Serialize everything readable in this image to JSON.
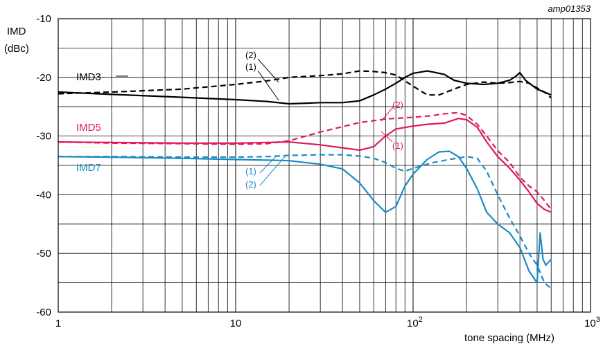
{
  "chart_data": {
    "type": "line",
    "code": "amp01353",
    "ylabel_line1": "IMD",
    "ylabel_line2": "(dBc)",
    "xlabel": "tone spacing (MHz)",
    "xscale": "log",
    "xlim": [
      1,
      1000
    ],
    "ylim": [
      -60,
      -10
    ],
    "grid": true,
    "x_ticks": [
      {
        "base": "1",
        "exp": ""
      },
      {
        "base": "10",
        "exp": ""
      },
      {
        "base": "10",
        "exp": "2"
      },
      {
        "base": "10",
        "exp": "3"
      }
    ],
    "y_ticks": [
      "-60",
      "-50",
      "-40",
      "-30",
      "-20",
      "-10"
    ],
    "colors": {
      "IMD3": "#000000",
      "IMD5": "#e2185b",
      "IMD7": "#1a8ac6"
    },
    "series_labels": [
      "IMD3",
      "IMD5",
      "IMD7"
    ],
    "markers": {
      "one": "(1)",
      "two": "(2)"
    },
    "series": [
      {
        "group": "IMD3",
        "curve": "(1)",
        "style": "solid",
        "x": [
          1,
          2,
          5,
          10,
          15,
          20,
          25,
          30,
          40,
          50,
          60,
          70,
          80,
          90,
          100,
          110,
          120,
          130,
          150,
          170,
          200,
          250,
          300,
          350,
          380,
          400,
          430,
          500,
          600
        ],
        "y": [
          -22.5,
          -22.9,
          -23.4,
          -23.8,
          -24.1,
          -24.5,
          -24.4,
          -24.3,
          -24.3,
          -24.0,
          -23.0,
          -22.0,
          -21.0,
          -20.0,
          -19.3,
          -19.1,
          -18.9,
          -19.1,
          -19.5,
          -20.5,
          -21.0,
          -21.2,
          -21.0,
          -20.5,
          -19.8,
          -19.2,
          -20.5,
          -22.0,
          -23.0
        ]
      },
      {
        "group": "IMD3",
        "curve": "(2)",
        "style": "dashed",
        "x": [
          1,
          2,
          5,
          10,
          15,
          20,
          30,
          40,
          50,
          60,
          70,
          80,
          100,
          120,
          140,
          170,
          200,
          250,
          300,
          350,
          400,
          450,
          500,
          550,
          600
        ],
        "y": [
          -22.8,
          -22.5,
          -22.0,
          -21.2,
          -20.6,
          -20.0,
          -19.7,
          -19.4,
          -18.9,
          -19.0,
          -19.2,
          -19.6,
          -21.5,
          -23.0,
          -23.0,
          -22.0,
          -21.2,
          -20.8,
          -21.0,
          -20.9,
          -20.7,
          -21.0,
          -21.8,
          -22.5,
          -23.5
        ]
      },
      {
        "group": "IMD5",
        "curve": "(1)",
        "style": "solid",
        "x": [
          1,
          2,
          5,
          10,
          15,
          20,
          30,
          40,
          50,
          60,
          70,
          80,
          100,
          120,
          150,
          180,
          200,
          230,
          260,
          300,
          350,
          400,
          450,
          500,
          550,
          600
        ],
        "y": [
          -31.0,
          -31.1,
          -31.2,
          -31.2,
          -31.1,
          -31.0,
          -31.5,
          -32.0,
          -32.4,
          -31.8,
          -30.0,
          -28.8,
          -28.3,
          -28.0,
          -27.8,
          -27.0,
          -27.2,
          -28.5,
          -31.0,
          -33.5,
          -35.5,
          -37.5,
          -39.5,
          -41.5,
          -42.5,
          -43.0
        ]
      },
      {
        "group": "IMD5",
        "curve": "(2)",
        "style": "dashed",
        "x": [
          1,
          2,
          5,
          10,
          15,
          20,
          30,
          50,
          70,
          100,
          130,
          150,
          180,
          200,
          230,
          260,
          300,
          350,
          400,
          450,
          500,
          550,
          600
        ],
        "y": [
          -31.0,
          -31.2,
          -31.3,
          -31.4,
          -31.3,
          -30.8,
          -29.3,
          -27.7,
          -27.1,
          -26.8,
          -26.5,
          -26.2,
          -26.0,
          -26.5,
          -28.0,
          -30.0,
          -32.5,
          -34.5,
          -37.0,
          -38.5,
          -39.5,
          -41.0,
          -42.5
        ]
      },
      {
        "group": "IMD7",
        "curve": "(1)",
        "style": "solid",
        "x": [
          1,
          2,
          5,
          10,
          15,
          20,
          30,
          40,
          50,
          60,
          70,
          80,
          90,
          100,
          120,
          140,
          160,
          180,
          200,
          230,
          260,
          300,
          350,
          400,
          450,
          500,
          520,
          540,
          560,
          600
        ],
        "y": [
          -33.5,
          -33.6,
          -33.8,
          -34.0,
          -34.1,
          -34.2,
          -34.8,
          -35.6,
          -38.0,
          -41.0,
          -43.0,
          -42.0,
          -38.5,
          -36.5,
          -34.0,
          -32.7,
          -32.6,
          -33.5,
          -35.5,
          -39.0,
          -43.0,
          -45.0,
          -46.5,
          -49.0,
          -53.0,
          -55.0,
          -46.5,
          -51.0,
          -52.0,
          -51.0
        ]
      },
      {
        "group": "IMD7",
        "curve": "(2)",
        "style": "dashed",
        "x": [
          1,
          2,
          5,
          10,
          15,
          20,
          30,
          40,
          50,
          60,
          70,
          80,
          90,
          100,
          130,
          160,
          200,
          230,
          260,
          300,
          350,
          400,
          450,
          500,
          550,
          600
        ],
        "y": [
          -33.5,
          -33.5,
          -33.6,
          -33.6,
          -33.5,
          -33.3,
          -33.2,
          -33.2,
          -33.4,
          -33.8,
          -34.5,
          -35.5,
          -36.0,
          -35.5,
          -34.5,
          -34.0,
          -33.5,
          -33.8,
          -36.0,
          -40.0,
          -44.0,
          -47.0,
          -50.0,
          -52.0,
          -55.0,
          -56.0
        ]
      }
    ]
  }
}
